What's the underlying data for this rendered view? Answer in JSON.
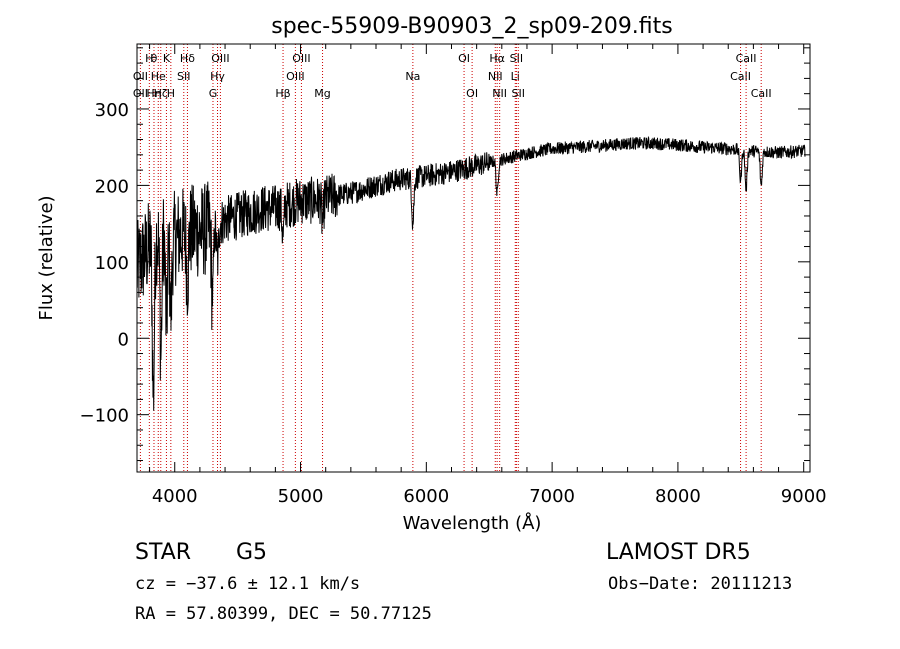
{
  "chart_data": {
    "type": "line",
    "title": "spec-55909-B90903_2_sp09-209.fits",
    "xlabel": "Wavelength (Å)",
    "ylabel": "Flux (relative)",
    "xlim": [
      3700,
      9050
    ],
    "ylim": [
      -175,
      385
    ],
    "x_ticks": [
      4000,
      5000,
      6000,
      7000,
      8000,
      9000
    ],
    "y_ticks": [
      -100,
      0,
      100,
      200,
      300
    ],
    "grid": false,
    "line_color": "#000000",
    "marker_color": "#cc0000",
    "continuum": [
      [
        3700,
        90
      ],
      [
        3800,
        120
      ],
      [
        3900,
        140
      ],
      [
        4000,
        130
      ],
      [
        4100,
        140
      ],
      [
        4200,
        140
      ],
      [
        4300,
        145
      ],
      [
        4400,
        155
      ],
      [
        4500,
        160
      ],
      [
        4600,
        165
      ],
      [
        4700,
        170
      ],
      [
        4800,
        170
      ],
      [
        4900,
        175
      ],
      [
        5000,
        180
      ],
      [
        5100,
        180
      ],
      [
        5200,
        183
      ],
      [
        5300,
        187
      ],
      [
        5400,
        190
      ],
      [
        5500,
        195
      ],
      [
        5600,
        200
      ],
      [
        5700,
        205
      ],
      [
        5800,
        208
      ],
      [
        5900,
        210
      ],
      [
        6000,
        212
      ],
      [
        6100,
        215
      ],
      [
        6200,
        218
      ],
      [
        6300,
        222
      ],
      [
        6400,
        226
      ],
      [
        6500,
        230
      ],
      [
        6600,
        234
      ],
      [
        6700,
        238
      ],
      [
        6800,
        242
      ],
      [
        6900,
        245
      ],
      [
        7000,
        248
      ],
      [
        7200,
        250
      ],
      [
        7400,
        252
      ],
      [
        7600,
        255
      ],
      [
        7800,
        255
      ],
      [
        8000,
        253
      ],
      [
        8200,
        250
      ],
      [
        8400,
        248
      ],
      [
        8600,
        245
      ],
      [
        8800,
        243
      ],
      [
        9000,
        245
      ]
    ],
    "absorption": [
      {
        "x": 3830,
        "depth": 200
      },
      {
        "x": 3890,
        "depth": 160
      },
      {
        "x": 3934,
        "depth": 120
      },
      {
        "x": 3969,
        "depth": 100
      },
      {
        "x": 4101,
        "depth": 60
      },
      {
        "x": 4300,
        "depth": 90
      },
      {
        "x": 4340,
        "depth": 50
      },
      {
        "x": 4861,
        "depth": 40
      },
      {
        "x": 5175,
        "depth": 30
      },
      {
        "x": 5893,
        "depth": 60
      },
      {
        "x": 6563,
        "depth": 45
      },
      {
        "x": 8498,
        "depth": 40
      },
      {
        "x": 8542,
        "depth": 50
      },
      {
        "x": 8662,
        "depth": 45
      }
    ],
    "lines": [
      {
        "x": 3727,
        "label": "OII",
        "row": 2
      },
      {
        "x": 3727,
        "label": "OII",
        "row": 3
      },
      {
        "x": 3798,
        "label": "H",
        "row": 1
      },
      {
        "x": 3835,
        "label": "θ",
        "row": 1
      },
      {
        "x": 3835,
        "label": "Hη",
        "row": 3
      },
      {
        "x": 3869,
        "label": "He",
        "row": 2
      },
      {
        "x": 3889,
        "label": "Hζ",
        "row": 3
      },
      {
        "x": 3934,
        "label": "K",
        "row": 1
      },
      {
        "x": 3969,
        "label": "H",
        "row": 3
      },
      {
        "x": 4101,
        "label": "Hδ",
        "row": 1
      },
      {
        "x": 4072,
        "label": "SII",
        "row": 2
      },
      {
        "x": 4304,
        "label": "G",
        "row": 3
      },
      {
        "x": 4340,
        "label": "Hγ",
        "row": 2
      },
      {
        "x": 4363,
        "label": "OIII",
        "row": 1
      },
      {
        "x": 4861,
        "label": "Hβ",
        "row": 3
      },
      {
        "x": 4959,
        "label": "OIII",
        "row": 2
      },
      {
        "x": 5007,
        "label": "OIII",
        "row": 1
      },
      {
        "x": 5175,
        "label": "Mg",
        "row": 3
      },
      {
        "x": 5893,
        "label": "Na",
        "row": 2
      },
      {
        "x": 6300,
        "label": "OI",
        "row": 1
      },
      {
        "x": 6364,
        "label": "OI",
        "row": 3
      },
      {
        "x": 6548,
        "label": "NII",
        "row": 2
      },
      {
        "x": 6563,
        "label": "Hα",
        "row": 1
      },
      {
        "x": 6583,
        "label": "NII",
        "row": 3
      },
      {
        "x": 6707,
        "label": "Li",
        "row": 2
      },
      {
        "x": 6716,
        "label": "SII",
        "row": 1
      },
      {
        "x": 6731,
        "label": "SII",
        "row": 3
      },
      {
        "x": 8498,
        "label": "CaII",
        "row": 2
      },
      {
        "x": 8542,
        "label": "CaII",
        "row": 1
      },
      {
        "x": 8662,
        "label": "CaII",
        "row": 3
      }
    ]
  },
  "footer": {
    "object_class": "STAR",
    "subclass": "G5",
    "survey": "LAMOST DR5",
    "redshift": "cz = −37.6 ± 12.1 km/s",
    "obs_date": "Obs−Date: 20111213",
    "coords": "RA =  57.80399, DEC =  50.77125"
  }
}
